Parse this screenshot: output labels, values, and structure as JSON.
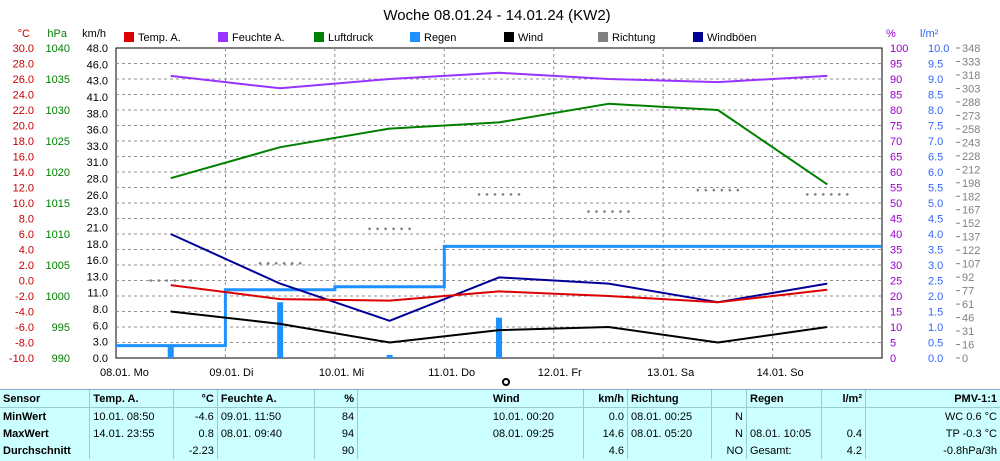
{
  "chart_data": {
    "type": "line",
    "title": "Woche 08.01.24 - 14.01.24 (KW2)",
    "legend": {
      "position": "top",
      "items": [
        {
          "name": "Temp. A.",
          "color": "#dd0000"
        },
        {
          "name": "Feuchte A.",
          "color": "#9933ff"
        },
        {
          "name": "Luftdruck",
          "color": "#008000"
        },
        {
          "name": "Regen",
          "color": "#1e90ff"
        },
        {
          "name": "Wind",
          "color": "#000000"
        },
        {
          "name": "Richtung",
          "color": "#808080"
        },
        {
          "name": "Windböen",
          "color": "#000099"
        }
      ]
    },
    "grid": true,
    "x": {
      "days": [
        "08.01.",
        "09.01.",
        "10.01.",
        "11.01.",
        "12.01.",
        "13.01.",
        "14.01."
      ],
      "weekdays": [
        "Mo",
        "Di",
        "Mi",
        "Do",
        "Fr",
        "Sa",
        "So"
      ]
    },
    "axes": {
      "temp": {
        "unit": "°C",
        "color": "#cc0000",
        "range": [
          -10,
          30
        ],
        "ticks": [
          "-10.0",
          "-8.0",
          "-6.0",
          "-4.0",
          "-2.0",
          "0.0",
          "2.0",
          "4.0",
          "6.0",
          "8.0",
          "10.0",
          "12.0",
          "14.0",
          "16.0",
          "18.0",
          "20.0",
          "22.0",
          "24.0",
          "26.0",
          "28.0",
          "30.0"
        ]
      },
      "pressure": {
        "unit": "hPa",
        "color": "#008000",
        "range": [
          990,
          1040
        ],
        "ticks": [
          "990",
          "995",
          "1000",
          "1005",
          "1010",
          "1015",
          "1020",
          "1025",
          "1030",
          "1035",
          "1040"
        ]
      },
      "wind": {
        "unit": "km/h",
        "color": "#000000",
        "range": [
          0,
          50
        ],
        "ticks": [
          "0.0",
          "3.0",
          "6.0",
          "8.0",
          "11.0",
          "13.0",
          "16.0",
          "18.0",
          "21.0",
          "23.0",
          "26.0",
          "28.0",
          "31.0",
          "33.0",
          "36.0",
          "38.0",
          "41.0",
          "43.0",
          "46.0",
          "48.0"
        ]
      },
      "humidity": {
        "unit": "%",
        "color": "#9900cc",
        "range": [
          0,
          100
        ],
        "ticks": [
          "0",
          "5",
          "10",
          "15",
          "20",
          "25",
          "30",
          "35",
          "40",
          "45",
          "50",
          "55",
          "60",
          "65",
          "70",
          "75",
          "80",
          "85",
          "90",
          "95",
          "100"
        ]
      },
      "rain": {
        "unit": "l/m²",
        "color": "#3366ff",
        "range": [
          0,
          10
        ],
        "ticks": [
          "0.0",
          "0.5",
          "1.0",
          "1.5",
          "2.0",
          "2.5",
          "3.0",
          "3.5",
          "4.0",
          "4.5",
          "5.0",
          "5.5",
          "6.0",
          "6.5",
          "7.0",
          "7.5",
          "8.0",
          "8.5",
          "9.0",
          "9.5",
          "10.0"
        ]
      },
      "direction": {
        "unit": "°",
        "color": "#808080",
        "range": [
          0,
          360
        ],
        "ticks": [
          "0",
          "16",
          "31",
          "46",
          "61",
          "77",
          "92",
          "107",
          "122",
          "137",
          "152",
          "167",
          "182",
          "198",
          "212",
          "228",
          "243",
          "258",
          "273",
          "288",
          "303",
          "318",
          "333",
          "348"
        ]
      }
    },
    "series": [
      {
        "name": "Temp. A.",
        "axis": "temp",
        "values": [
          -0.6,
          -2.4,
          -2.6,
          -1.4,
          -2.0,
          -2.8,
          -1.2
        ]
      },
      {
        "name": "Feuchte A.",
        "axis": "humidity",
        "values": [
          91,
          87,
          90,
          92,
          90,
          89,
          91
        ]
      },
      {
        "name": "Luftdruck",
        "axis": "pressure",
        "values": [
          1019,
          1024,
          1027,
          1028,
          1031,
          1030,
          1018
        ]
      },
      {
        "name": "Regen",
        "axis": "rain",
        "values": [
          0.4,
          2.2,
          2.3,
          3.6,
          3.6,
          3.6,
          3.6
        ]
      },
      {
        "name": "Wind",
        "axis": "wind",
        "values": [
          7.5,
          5.5,
          2.5,
          4.5,
          5.0,
          2.5,
          5.0
        ]
      },
      {
        "name": "Richtung",
        "axis": "direction",
        "values": [
          90,
          110,
          150,
          190,
          170,
          195,
          190
        ]
      },
      {
        "name": "Windböen",
        "axis": "wind",
        "values": [
          20.0,
          12.0,
          6.0,
          13.0,
          12.0,
          9.0,
          12.0
        ]
      }
    ]
  },
  "stats": {
    "header": [
      "Sensor",
      "Temp. A.",
      "°C",
      "Feuchte A.",
      "%",
      "",
      "Wind",
      "km/h",
      "Richtung",
      "",
      "Regen",
      "l/m²",
      "PMV-1:1"
    ],
    "rows": [
      [
        "MinWert",
        "10.01.  08:50",
        "-4.6",
        "09.01.  11:50",
        "84",
        "",
        "10.01.  00:20",
        "0.0",
        "08.01.  00:25",
        "N",
        "",
        "",
        "WC 0.6 °C"
      ],
      [
        "MaxWert",
        "14.01.  23:55",
        "0.8",
        "08.01.  09:40",
        "94",
        "",
        "08.01.  09:25",
        "14.6",
        "08.01.  05:20",
        "N",
        "08.01.  10:05",
        "0.4",
        "TP -0.3 °C"
      ],
      [
        "Durchschnitt",
        "",
        "-2.23",
        "",
        "90",
        "",
        "",
        "4.6",
        "",
        "NO",
        "Gesamt:",
        "4.2",
        "-0.8hPa/3h"
      ]
    ]
  }
}
